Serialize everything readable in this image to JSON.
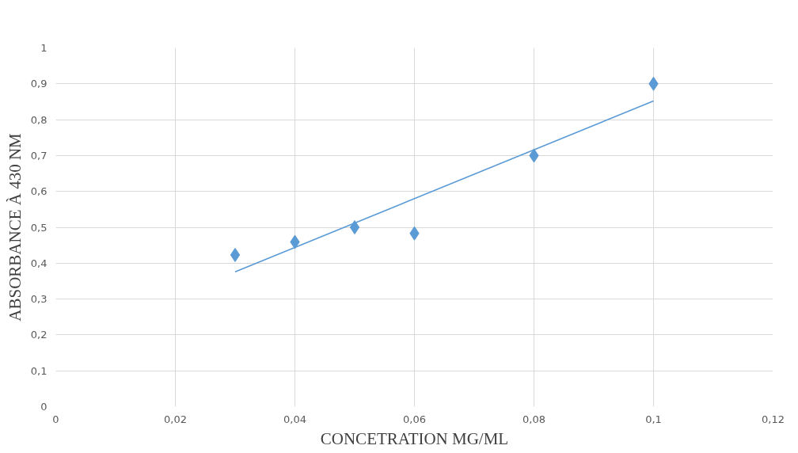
{
  "chart_data": {
    "type": "scatter",
    "xlabel": "CONCETRATION MG/ML",
    "ylabel": "ABSORBANCE À 430 NM",
    "x": [
      0.03,
      0.04,
      0.05,
      0.06,
      0.08,
      0.1
    ],
    "series": [
      {
        "color": "#5b9bd5",
        "marker": "diamond",
        "values": [
          0.423,
          0.459,
          0.5,
          0.483,
          0.7,
          0.9
        ]
      },
      {
        "type": "line",
        "color": "#5b9bd5",
        "x": [
          0.03,
          0.1
        ],
        "values": [
          0.376,
          0.852
        ],
        "line_style": "solid"
      }
    ],
    "xlim": [
      0,
      0.12
    ],
    "ylim": [
      0,
      1
    ],
    "xticks": [
      0,
      {
        "value": 0.02,
        "label": "0,02"
      },
      {
        "value": 0.04,
        "label": "0,04"
      },
      {
        "value": 0.06,
        "label": "0,06"
      },
      {
        "value": 0.08,
        "label": "0,08"
      },
      {
        "value": 0.1,
        "label": "0,1"
      },
      {
        "value": 0.12,
        "label": "0,12"
      }
    ],
    "yticks": [
      0,
      {
        "value": 0.1,
        "label": "0,1"
      },
      {
        "value": 0.2,
        "label": "0,2"
      },
      {
        "value": 0.3,
        "label": "0,3"
      },
      {
        "value": 0.4,
        "label": "0,4"
      },
      {
        "value": 0.5,
        "label": "0,5"
      },
      {
        "value": 0.6,
        "label": "0,6"
      },
      {
        "value": 0.7,
        "label": "0,7"
      },
      {
        "value": 0.8,
        "label": "0,8"
      },
      {
        "value": 0.9,
        "label": "0,9"
      },
      1
    ],
    "grid": true
  }
}
